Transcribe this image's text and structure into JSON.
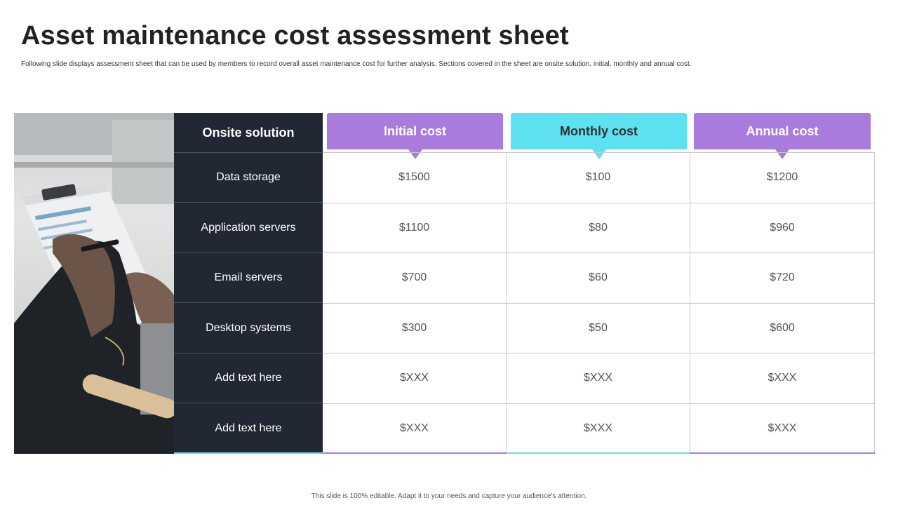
{
  "slide": {
    "title": "Asset maintenance cost assessment sheet",
    "subtitle": "Following slide displays assessment sheet that can be used by members to record overall asset maintenance cost for further analysis. Sections covered in the sheet are onsite solution, initial, monthly and annual cost.",
    "footer": "This slide is 100% editable. Adapt it to your needs and capture your audience's attention."
  },
  "colors": {
    "dark": "#212834",
    "purple": "#a97bdc",
    "cyan": "#5ee1f0"
  },
  "table": {
    "label_header": "Onsite solution",
    "columns": [
      {
        "label": "Initial cost",
        "color": "purple"
      },
      {
        "label": "Monthly cost",
        "color": "cyan"
      },
      {
        "label": "Annual cost",
        "color": "purple"
      }
    ],
    "rows": [
      {
        "label": "Data storage",
        "values": [
          "$1500",
          "$100",
          "$1200"
        ]
      },
      {
        "label": "Application servers",
        "values": [
          "$1100",
          "$80",
          "$960"
        ]
      },
      {
        "label": "Email servers",
        "values": [
          "$700",
          "$60",
          "$720"
        ]
      },
      {
        "label": "Desktop systems",
        "values": [
          "$300",
          "$50",
          "$600"
        ]
      },
      {
        "label": "Add text here",
        "values": [
          "$XXX",
          "$XXX",
          "$XXX"
        ]
      },
      {
        "label": "Add text here",
        "values": [
          "$XXX",
          "$XXX",
          "$XXX"
        ]
      }
    ]
  }
}
